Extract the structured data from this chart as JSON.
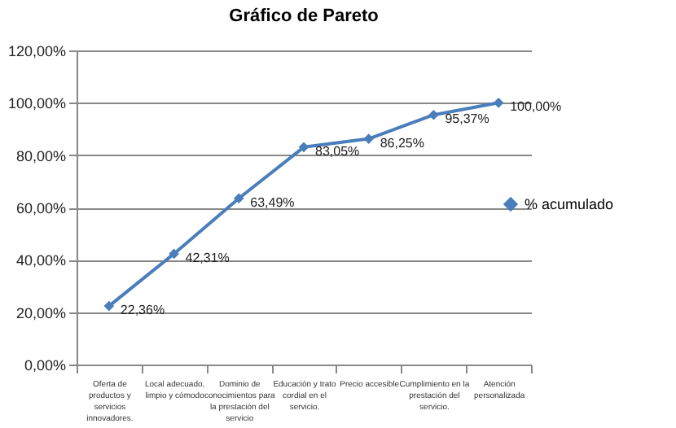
{
  "chart_data": {
    "type": "line",
    "title": "Gráfico de Pareto",
    "categories": [
      "Oferta de productos y servicios innovadores.",
      "Local adecuado, limpio y cómodo",
      "Dominio de conocimientos para la prestación del servicio",
      "Educación y trato cordial en el servicio.",
      "Precio accesible",
      "Cumplimiento en la prestación del servicio.",
      "Atención personalizada"
    ],
    "series": [
      {
        "name": "% acumulado",
        "color": "#4a7ebb",
        "values": [
          22.36,
          42.31,
          63.49,
          83.05,
          86.25,
          95.37,
          100
        ],
        "value_labels": [
          "22,36%",
          "42,31%",
          "63,49%",
          "83,05%",
          "86,25%",
          "95,37%",
          "100,00%"
        ]
      }
    ],
    "ylim": [
      0,
      120
    ],
    "yticks": [
      {
        "value": 0,
        "label": "0,00%"
      },
      {
        "value": 20,
        "label": "20,00%"
      },
      {
        "value": 40,
        "label": "40,00%"
      },
      {
        "value": 60,
        "label": "60,00%"
      },
      {
        "value": 80,
        "label": "80,00%"
      },
      {
        "value": 100,
        "label": "100,00%"
      },
      {
        "value": 120,
        "label": "120,00%"
      }
    ],
    "grid": "y",
    "legend": "right",
    "marker": "diamond",
    "line_style": "solid"
  }
}
